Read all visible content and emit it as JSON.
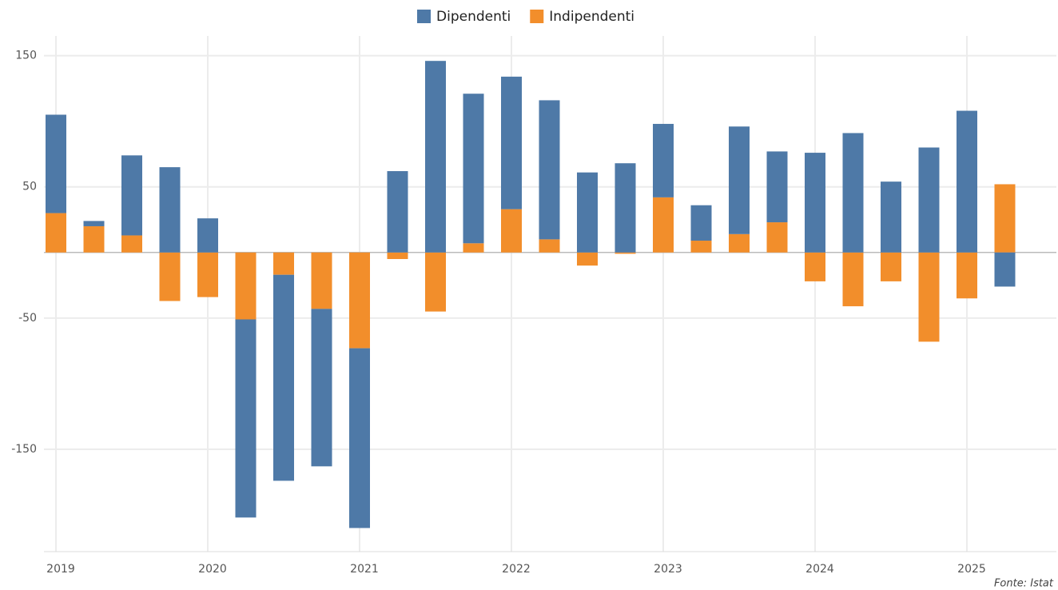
{
  "chart_data": {
    "type": "stacked_bar",
    "categories": [
      "2019",
      null,
      null,
      null,
      "2020",
      null,
      null,
      null,
      "2021",
      null,
      null,
      null,
      "2022",
      null,
      null,
      null,
      "2023",
      null,
      null,
      null,
      "2024",
      null,
      null,
      null,
      "2025",
      null
    ],
    "series": [
      {
        "name": "Dipendenti",
        "color": "#4e79a7",
        "values": [
          75,
          4,
          61,
          65,
          26,
          -151,
          -157,
          -120,
          -137,
          62,
          146,
          114,
          101,
          106,
          61,
          68,
          56,
          27,
          82,
          54,
          76,
          91,
          54,
          80,
          108,
          -26
        ]
      },
      {
        "name": "Indipendenti",
        "color": "#f28e2b",
        "values": [
          30,
          20,
          13,
          -37,
          -34,
          -51,
          -17,
          -43,
          -73,
          -5,
          -45,
          7,
          33,
          10,
          -10,
          -1,
          42,
          9,
          14,
          23,
          -22,
          -41,
          -22,
          -68,
          -35,
          52
        ]
      }
    ],
    "ylim": [
      -228,
      165
    ],
    "yticks": [
      -150,
      -50,
      50,
      150
    ],
    "grid": true,
    "legend": "top",
    "source": "Fonte: Istat"
  }
}
